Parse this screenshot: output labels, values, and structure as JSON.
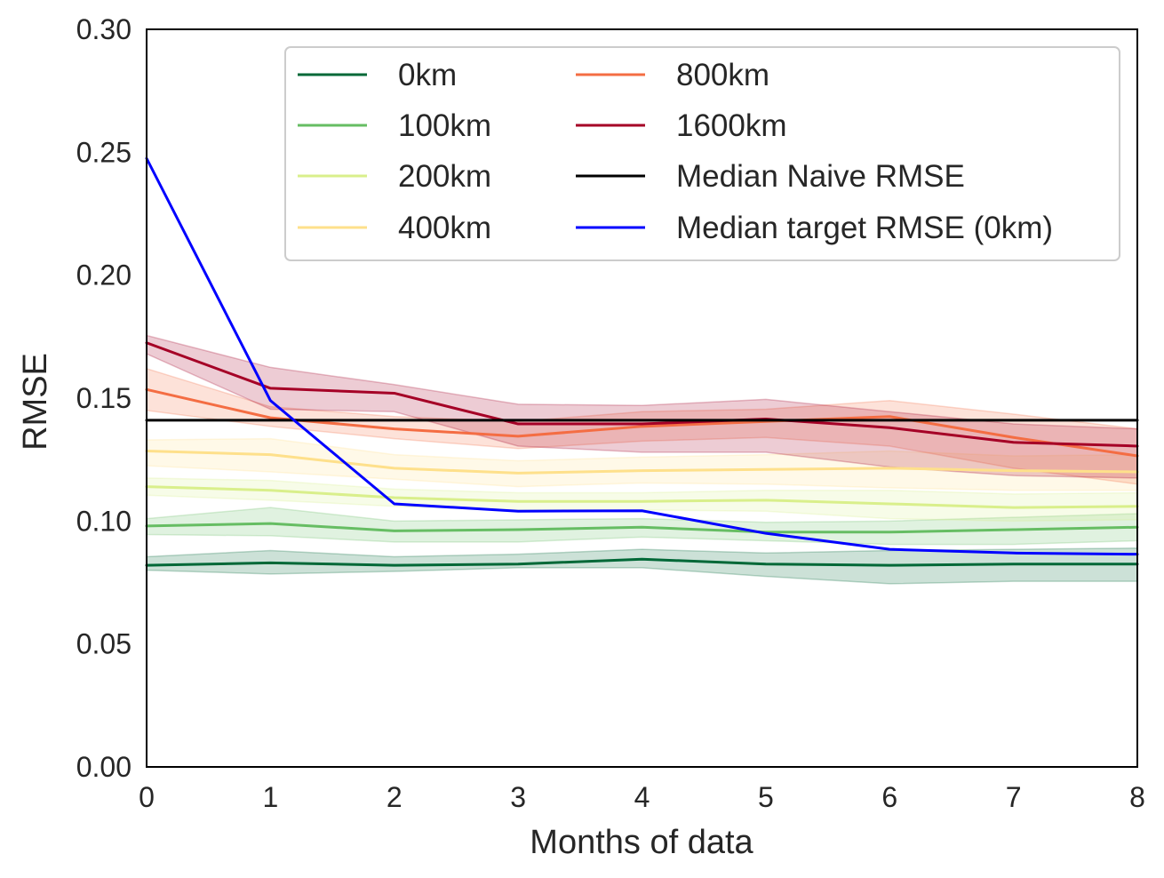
{
  "chart_data": {
    "type": "line",
    "title": "",
    "xlabel": "Months of data",
    "ylabel": "RMSE",
    "xlim": [
      0,
      8
    ],
    "ylim": [
      0,
      0.3
    ],
    "xticks": [
      "0",
      "1",
      "2",
      "3",
      "4",
      "5",
      "6",
      "7",
      "8"
    ],
    "yticks": [
      "0.00",
      "0.05",
      "0.10",
      "0.15",
      "0.20",
      "0.25",
      "0.30"
    ],
    "grid": false,
    "legend_position": "top-right",
    "x": [
      0,
      1,
      2,
      3,
      4,
      5,
      6,
      7,
      8
    ],
    "series": [
      {
        "name": "0km",
        "color": "#006837",
        "values": [
          0.082,
          0.083,
          0.082,
          0.0825,
          0.0845,
          0.0825,
          0.082,
          0.0825,
          0.0825
        ],
        "lower": [
          0.08,
          0.0785,
          0.0795,
          0.081,
          0.081,
          0.0775,
          0.0745,
          0.0755,
          0.0755
        ],
        "upper": [
          0.0855,
          0.088,
          0.0855,
          0.0865,
          0.0885,
          0.087,
          0.088,
          0.0885,
          0.089
        ]
      },
      {
        "name": "100km",
        "color": "#66bd63",
        "values": [
          0.098,
          0.099,
          0.096,
          0.0965,
          0.0975,
          0.0955,
          0.0955,
          0.0965,
          0.0975
        ],
        "lower": [
          0.0945,
          0.094,
          0.0915,
          0.0915,
          0.0935,
          0.092,
          0.0905,
          0.0905,
          0.092
        ],
        "upper": [
          0.101,
          0.1055,
          0.1,
          0.1005,
          0.101,
          0.0995,
          0.1,
          0.1015,
          0.103
        ]
      },
      {
        "name": "200km",
        "color": "#d9ef8b",
        "values": [
          0.114,
          0.1125,
          0.1095,
          0.108,
          0.108,
          0.1085,
          0.107,
          0.1055,
          0.106
        ],
        "lower": [
          0.1105,
          0.1085,
          0.106,
          0.1045,
          0.1045,
          0.104,
          0.101,
          0.1,
          0.1005
        ],
        "upper": [
          0.1175,
          0.1165,
          0.113,
          0.1115,
          0.1115,
          0.1125,
          0.1125,
          0.111,
          0.1115
        ]
      },
      {
        "name": "400km",
        "color": "#fee08b",
        "values": [
          0.1285,
          0.127,
          0.1215,
          0.1195,
          0.1205,
          0.121,
          0.1215,
          0.1205,
          0.12
        ],
        "lower": [
          0.1225,
          0.12,
          0.117,
          0.114,
          0.1155,
          0.115,
          0.1135,
          0.1125,
          0.1125
        ],
        "upper": [
          0.133,
          0.1335,
          0.127,
          0.1245,
          0.126,
          0.127,
          0.1285,
          0.1265,
          0.127
        ]
      },
      {
        "name": "800km",
        "color": "#f46d43",
        "values": [
          0.1535,
          0.142,
          0.1375,
          0.1345,
          0.1385,
          0.1405,
          0.1425,
          0.134,
          0.1265
        ],
        "lower": [
          0.145,
          0.1385,
          0.1335,
          0.1295,
          0.1325,
          0.134,
          0.1305,
          0.1215,
          0.115
        ],
        "upper": [
          0.162,
          0.1465,
          0.1425,
          0.1405,
          0.1445,
          0.1455,
          0.149,
          0.1435,
          0.1375
        ]
      },
      {
        "name": "1600km",
        "color": "#a50026",
        "values": [
          0.1725,
          0.154,
          0.152,
          0.1395,
          0.1395,
          0.1415,
          0.138,
          0.132,
          0.1305
        ],
        "lower": [
          0.168,
          0.1455,
          0.1445,
          0.1305,
          0.128,
          0.128,
          0.122,
          0.1185,
          0.1175
        ],
        "upper": [
          0.1755,
          0.1625,
          0.1555,
          0.1475,
          0.147,
          0.1495,
          0.1445,
          0.1395,
          0.1375
        ]
      },
      {
        "name": "Median Naive RMSE",
        "color": "#000000",
        "values": [
          0.141,
          0.141,
          0.141,
          0.141,
          0.141,
          0.141,
          0.141,
          0.141,
          0.141
        ]
      },
      {
        "name": "Median target RMSE (0km)",
        "color": "#0000ff",
        "values": [
          0.2475,
          0.149,
          0.107,
          0.104,
          0.1042,
          0.095,
          0.0885,
          0.087,
          0.0865
        ]
      }
    ]
  }
}
